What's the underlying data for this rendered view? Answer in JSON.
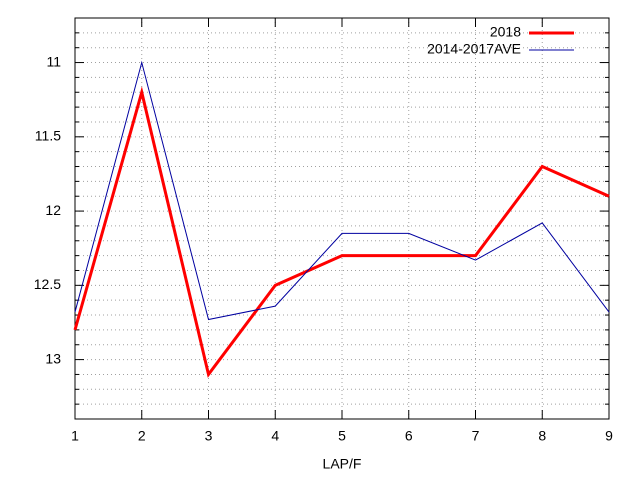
{
  "chart_data": {
    "type": "line",
    "x_label": "LAP/F",
    "x": [
      1,
      2,
      3,
      4,
      5,
      6,
      7,
      8,
      9
    ],
    "xlim": [
      1,
      9
    ],
    "xticks": [
      1,
      2,
      3,
      4,
      5,
      6,
      7,
      8,
      9
    ],
    "ylim": [
      10.7,
      13.4
    ],
    "yticks": [
      11,
      11.5,
      12,
      12.5,
      13
    ],
    "yminorticks": [
      10.8,
      10.9,
      11.1,
      11.2,
      11.3,
      11.4,
      11.6,
      11.7,
      11.8,
      11.9,
      12.1,
      12.2,
      12.3,
      12.4,
      12.6,
      12.7,
      12.8,
      12.9,
      13.1,
      13.2,
      13.3
    ],
    "y_reversed": true,
    "grid": true,
    "legend": "top-right",
    "series": [
      {
        "name": "2018",
        "color": "#ff0000",
        "width": 3,
        "values": [
          12.8,
          11.2,
          13.1,
          12.5,
          12.3,
          12.3,
          12.3,
          11.7,
          11.9
        ]
      },
      {
        "name": "2014-2017AVE",
        "color": "#0000a0",
        "width": 1,
        "values": [
          12.68,
          11.0,
          12.73,
          12.64,
          12.15,
          12.15,
          12.33,
          12.08,
          12.68
        ]
      }
    ]
  }
}
